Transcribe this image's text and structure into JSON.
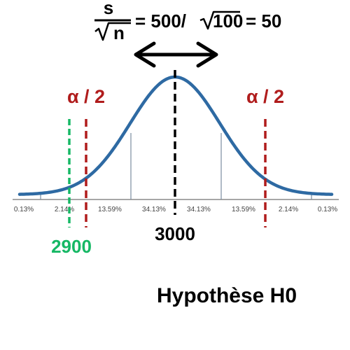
{
  "formula": {
    "numerator": "s",
    "denominator": "n",
    "expression": "= 500/",
    "root_content": "100",
    "result": "= 50"
  },
  "alpha_label_left": "α / 2",
  "alpha_label_right": "α / 2",
  "percentages": [
    "0.13%",
    "2.14%",
    "13.59%",
    "34.13%",
    "34.13%",
    "13.59%",
    "2.14%",
    "0.13%"
  ],
  "mean_label": "3000",
  "sample_label": "2900",
  "hypothesis_label": "Hypothèse H0",
  "colors": {
    "curve": "#2e6aa3",
    "critical": "#b01c1c",
    "sample": "#16b865",
    "mean": "#000000",
    "axis": "#8a8a8a",
    "text": "#000000",
    "percent_text": "#444444"
  },
  "icons": {
    "spread_arrow": "double-headed-arrow-icon"
  }
}
